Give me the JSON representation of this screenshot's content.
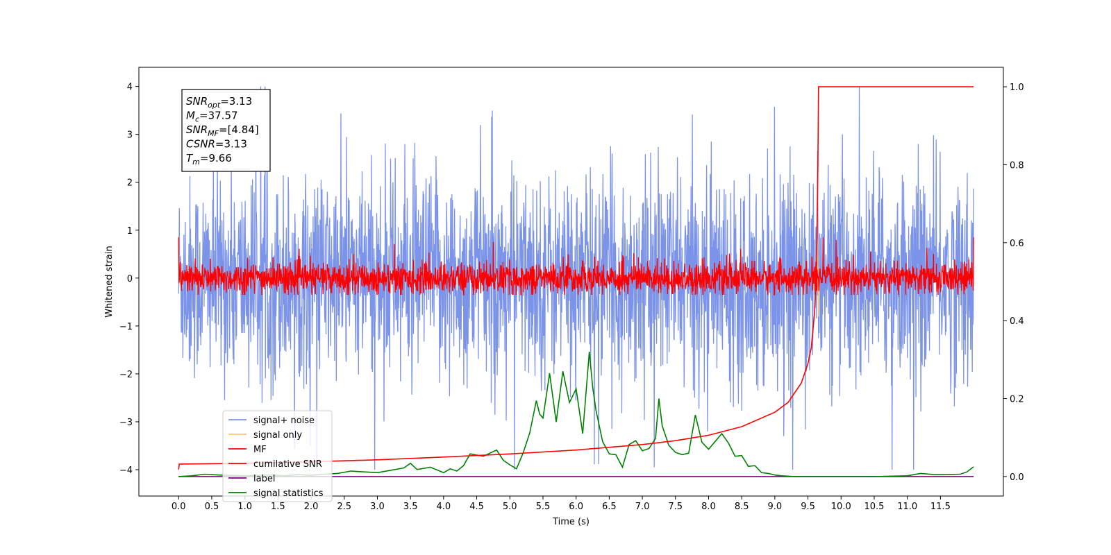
{
  "chart_data": {
    "type": "line",
    "xlabel": "Time (s)",
    "ylabel": "Whitened strain",
    "xlim": [
      -0.6,
      12.45
    ],
    "ylim": [
      -4.55,
      4.4
    ],
    "y2lim": [
      -0.05,
      1.05
    ],
    "x_ticks": [
      "0.0",
      "0.5",
      "1.0",
      "1.5",
      "2.0",
      "2.5",
      "3.0",
      "3.5",
      "4.0",
      "4.5",
      "5.0",
      "5.5",
      "6.0",
      "6.5",
      "7.0",
      "7.5",
      "8.0",
      "8.5",
      "9.0",
      "9.5",
      "10.0",
      "10.5",
      "11.0",
      "11.5"
    ],
    "y_ticks": [
      "4",
      "3",
      "2",
      "1",
      "0",
      "−1",
      "−2",
      "−3",
      "−4"
    ],
    "y2_ticks": [
      "1.0",
      "0.8",
      "0.6",
      "0.4",
      "0.2",
      "0.0"
    ],
    "grid": false,
    "legend_position": "lower-left",
    "annotation": [
      {
        "label": "SNR",
        "sub": "opt",
        "value": "=3.13"
      },
      {
        "label": "M",
        "sub": "c",
        "value": "=37.57"
      },
      {
        "label": "SNR",
        "sub": "MF",
        "value": "=[4.84]"
      },
      {
        "label": "CSNR",
        "sub": "",
        "value": "=3.13"
      },
      {
        "label": "T",
        "sub": "m",
        "value": "=9.66"
      }
    ],
    "series": [
      {
        "name": "signal+ noise",
        "color": "#7b93e8",
        "axis": "left",
        "note": "dense noise, amplitude ~ +/-2.5, peaks to +4.0 and -4.0",
        "x_range": [
          0,
          12.0
        ],
        "amplitude": 2.6
      },
      {
        "name": "signal only",
        "color": "#f5c97a",
        "axis": "left",
        "x": [
          9.62,
          9.64,
          9.66,
          9.67
        ],
        "y": [
          0.2,
          0.8,
          -0.8,
          0.0
        ]
      },
      {
        "name": "MF",
        "color": "#ff0000",
        "axis": "left",
        "note": "dense trace around 0, amplitude ~ +/-0.35, peaks to 1.0",
        "x_range": [
          0,
          12.0
        ],
        "amplitude": 0.55
      },
      {
        "name": "cumilative SNR",
        "color": "#ff0000",
        "axis": "right",
        "x": [
          0.0,
          0.01,
          1.0,
          2.0,
          3.0,
          4.0,
          5.0,
          6.0,
          7.0,
          7.5,
          8.0,
          8.5,
          9.0,
          9.2,
          9.4,
          9.5,
          9.55,
          9.6,
          9.63,
          9.65,
          9.66,
          12.0
        ],
        "y": [
          0.018,
          0.032,
          0.034,
          0.038,
          0.043,
          0.05,
          0.058,
          0.068,
          0.082,
          0.092,
          0.106,
          0.128,
          0.165,
          0.19,
          0.24,
          0.29,
          0.33,
          0.42,
          0.55,
          0.8,
          1.0,
          1.0
        ]
      },
      {
        "name": "label",
        "color": "#800080",
        "axis": "right",
        "x": [
          0.0,
          12.0
        ],
        "y": [
          0.0,
          0.0
        ]
      },
      {
        "name": "signal statistics",
        "color": "#008000",
        "axis": "right",
        "x": [
          0.0,
          0.2,
          0.4,
          0.6,
          0.8,
          1.0,
          1.2,
          1.4,
          1.6,
          1.8,
          2.0,
          2.2,
          2.4,
          2.6,
          2.8,
          3.0,
          3.2,
          3.4,
          3.5,
          3.6,
          3.8,
          4.0,
          4.1,
          4.2,
          4.3,
          4.4,
          4.6,
          4.8,
          4.9,
          5.0,
          5.1,
          5.2,
          5.3,
          5.4,
          5.45,
          5.5,
          5.6,
          5.7,
          5.8,
          5.9,
          6.0,
          6.1,
          6.2,
          6.25,
          6.3,
          6.4,
          6.5,
          6.6,
          6.7,
          6.8,
          6.9,
          7.0,
          7.1,
          7.2,
          7.25,
          7.3,
          7.4,
          7.5,
          7.6,
          7.7,
          7.8,
          7.9,
          8.0,
          8.1,
          8.2,
          8.3,
          8.4,
          8.5,
          8.6,
          8.7,
          8.8,
          8.9,
          9.0,
          9.1,
          9.3,
          9.6,
          10.0,
          10.5,
          11.0,
          11.2,
          11.4,
          11.6,
          11.8,
          11.9,
          12.0
        ],
        "y": [
          0.0,
          0.002,
          0.006,
          0.004,
          0.003,
          0.002,
          0.003,
          0.004,
          0.002,
          0.005,
          0.003,
          0.006,
          0.008,
          0.014,
          0.012,
          0.01,
          0.016,
          0.022,
          0.034,
          0.018,
          0.024,
          0.01,
          0.02,
          0.014,
          0.028,
          0.058,
          0.052,
          0.068,
          0.042,
          0.03,
          0.02,
          0.06,
          0.112,
          0.195,
          0.16,
          0.15,
          0.265,
          0.14,
          0.27,
          0.19,
          0.225,
          0.11,
          0.32,
          0.23,
          0.17,
          0.09,
          0.058,
          0.056,
          0.024,
          0.082,
          0.092,
          0.066,
          0.072,
          0.098,
          0.2,
          0.13,
          0.08,
          0.062,
          0.056,
          0.06,
          0.158,
          0.088,
          0.07,
          0.09,
          0.11,
          0.086,
          0.052,
          0.054,
          0.026,
          0.028,
          0.01,
          0.008,
          0.004,
          0.002,
          0.0,
          0.0,
          0.0,
          0.0,
          0.002,
          0.008,
          0.005,
          0.005,
          0.006,
          0.012,
          0.025
        ]
      }
    ]
  }
}
